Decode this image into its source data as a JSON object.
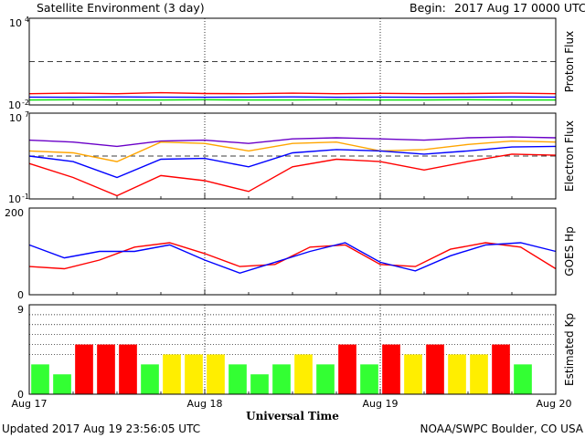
{
  "header": {
    "title": "Satellite Environment (3 day)",
    "begin_label": "Begin:",
    "begin_value": "2017 Aug 17 0000 UTC"
  },
  "footer": {
    "updated": "Updated 2017 Aug 19 23:56:05 UTC",
    "credit": "NOAA/SWPC Boulder, CO USA"
  },
  "x_axis": {
    "label": "Universal Time",
    "ticks": [
      "Aug 17",
      "Aug 18",
      "Aug 19",
      "Aug 20"
    ],
    "range_days": [
      0,
      3
    ]
  },
  "colors": {
    "red": "#ff0000",
    "blue": "#0000ff",
    "green": "#00dd00",
    "purple": "#6a00c8",
    "orange": "#ffa500",
    "kp_green": "#33ff33",
    "kp_yellow": "#ffee00",
    "kp_red": "#ff0000"
  },
  "chart_data": [
    {
      "type": "line",
      "ylabel": "Proton Flux",
      "yscale": "log",
      "ylim": [
        0.01,
        10000
      ],
      "ytick_labels": {
        "top": "10",
        "top_exp": "4",
        "bottom": "10",
        "bottom_exp": "-2"
      },
      "threshold": 10,
      "x": [
        0,
        0.25,
        0.5,
        0.75,
        1,
        1.25,
        1.5,
        1.75,
        2,
        2.25,
        2.5,
        2.75,
        3
      ],
      "series": [
        {
          "color": "red",
          "values": [
            0.06,
            0.065,
            0.06,
            0.07,
            0.062,
            0.06,
            0.065,
            0.06,
            0.063,
            0.06,
            0.062,
            0.065,
            0.06
          ]
        },
        {
          "color": "blue",
          "values": [
            0.035,
            0.034,
            0.036,
            0.035,
            0.034,
            0.035,
            0.036,
            0.034,
            0.035,
            0.034,
            0.035,
            0.036,
            0.035
          ]
        },
        {
          "color": "green",
          "values": [
            0.022,
            0.023,
            0.022,
            0.022,
            0.023,
            0.022,
            0.022,
            0.023,
            0.022,
            0.022,
            0.023,
            0.022,
            0.022
          ]
        }
      ]
    },
    {
      "type": "line",
      "ylabel": "Electron Flux",
      "yscale": "log",
      "ylim": [
        0.1,
        10000000
      ],
      "ytick_labels": {
        "top": "10",
        "top_exp": "7",
        "bottom": "10",
        "bottom_exp": "-1"
      },
      "threshold": 1000,
      "x": [
        0,
        0.25,
        0.5,
        0.75,
        1,
        1.25,
        1.5,
        1.75,
        2,
        2.25,
        2.5,
        2.75,
        3
      ],
      "series": [
        {
          "color": "purple",
          "values": [
            30000,
            20000,
            8000,
            25000,
            30000,
            15000,
            40000,
            50000,
            40000,
            30000,
            50000,
            60000,
            50000
          ]
        },
        {
          "color": "orange",
          "values": [
            3000,
            2000,
            300,
            20000,
            15000,
            3000,
            15000,
            20000,
            3000,
            4000,
            12000,
            25000,
            20000
          ]
        },
        {
          "color": "blue",
          "values": [
            1000,
            300,
            10,
            500,
            600,
            100,
            2000,
            4000,
            3000,
            1500,
            3000,
            7000,
            8000
          ]
        },
        {
          "color": "red",
          "values": [
            200,
            10,
            0.2,
            15,
            5,
            0.5,
            100,
            500,
            300,
            50,
            300,
            1500,
            1200
          ]
        }
      ]
    },
    {
      "type": "line",
      "ylabel": "GOES Hp",
      "yscale": "linear",
      "ylim": [
        0,
        200
      ],
      "ytick_labels": {
        "top": "200",
        "bottom": "0"
      },
      "x": [
        0,
        0.2,
        0.4,
        0.6,
        0.8,
        1.0,
        1.2,
        1.4,
        1.6,
        1.8,
        2.0,
        2.2,
        2.4,
        2.6,
        2.8,
        3.0
      ],
      "series": [
        {
          "color": "red",
          "values": [
            65,
            60,
            80,
            110,
            120,
            95,
            65,
            70,
            110,
            115,
            70,
            65,
            105,
            120,
            110,
            60
          ]
        },
        {
          "color": "blue",
          "values": [
            115,
            85,
            100,
            100,
            115,
            80,
            50,
            75,
            100,
            120,
            75,
            55,
            90,
            115,
            120,
            100
          ]
        }
      ]
    },
    {
      "type": "bar",
      "ylabel": "Estimated Kp",
      "ylim": [
        0,
        9
      ],
      "ytick_labels": {
        "top": "9",
        "bottom": "0"
      },
      "gridlines": [
        4,
        5,
        6,
        7,
        8
      ],
      "interval_hours": 3,
      "values": [
        3,
        2,
        5,
        5,
        5,
        3,
        4,
        4,
        4,
        3,
        2,
        3,
        4,
        3,
        5,
        3,
        5,
        4,
        5,
        4,
        4,
        5,
        3,
        0
      ],
      "color_rule": "Kp<4 green, Kp=4 yellow, Kp>=5 red"
    }
  ]
}
